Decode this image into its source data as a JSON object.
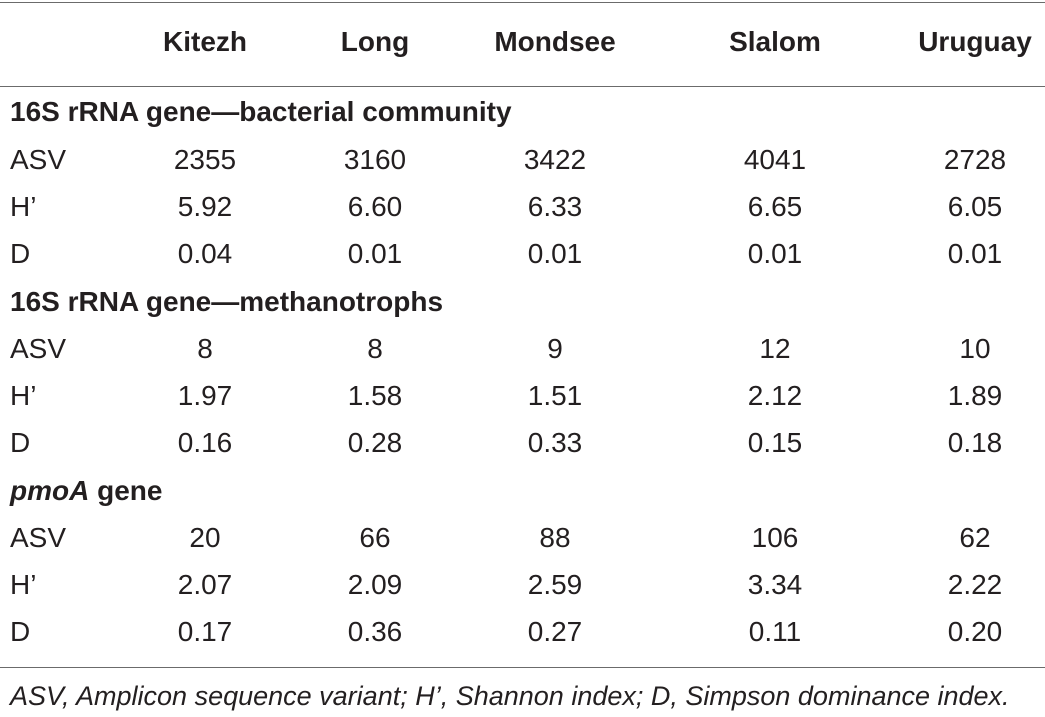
{
  "table": {
    "columns": [
      "Kitezh",
      "Long",
      "Mondsee",
      "Slalom",
      "Uruguay"
    ],
    "sections": [
      {
        "title_prefix": "",
        "title_italic": "",
        "title": "16S rRNA gene—bacterial community",
        "rows": [
          {
            "label": "ASV",
            "values": [
              "2355",
              "3160",
              "3422",
              "4041",
              "2728"
            ]
          },
          {
            "label": "H’",
            "values": [
              "5.92",
              "6.60",
              "6.33",
              "6.65",
              "6.05"
            ]
          },
          {
            "label": "D",
            "values": [
              "0.04",
              "0.01",
              "0.01",
              "0.01",
              "0.01"
            ]
          }
        ]
      },
      {
        "title_prefix": "",
        "title_italic": "",
        "title": "16S rRNA gene—methanotrophs",
        "rows": [
          {
            "label": "ASV",
            "values": [
              "8",
              "8",
              "9",
              "12",
              "10"
            ]
          },
          {
            "label": "H’",
            "values": [
              "1.97",
              "1.58",
              "1.51",
              "2.12",
              "1.89"
            ]
          },
          {
            "label": "D",
            "values": [
              "0.16",
              "0.28",
              "0.33",
              "0.15",
              "0.18"
            ]
          }
        ]
      },
      {
        "title_italic": "pmoA",
        "title": " gene",
        "rows": [
          {
            "label": "ASV",
            "values": [
              "20",
              "66",
              "88",
              "106",
              "62"
            ]
          },
          {
            "label": "H’",
            "values": [
              "2.07",
              "2.09",
              "2.59",
              "3.34",
              "2.22"
            ]
          },
          {
            "label": "D",
            "values": [
              "0.17",
              "0.36",
              "0.27",
              "0.11",
              "0.20"
            ]
          }
        ]
      }
    ],
    "footnote": "ASV, Amplicon sequence variant; H’, Shannon index; D, Simpson dominance index."
  }
}
